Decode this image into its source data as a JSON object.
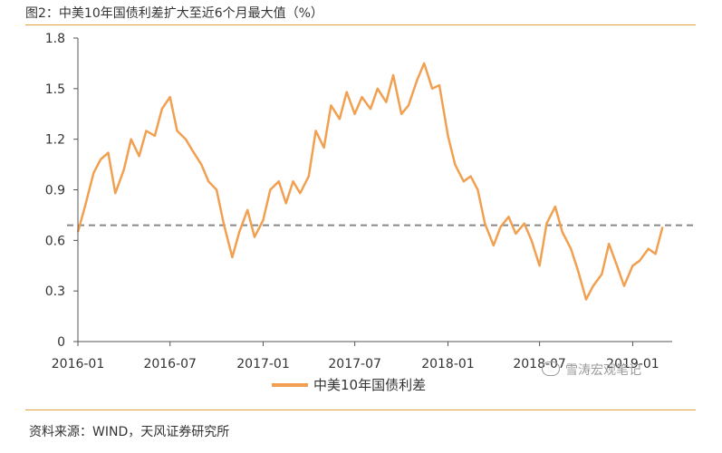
{
  "header": {
    "title": "图2：中美10年国债利差扩大至近6个月最大值（%）"
  },
  "footer": {
    "source": "资料来源：WIND，天风证券研究所"
  },
  "watermark": {
    "text": "雪涛宏观笔记"
  },
  "colors": {
    "series": "#f0a050",
    "reference": "#888888",
    "axis": "#555555",
    "rule": "#e8a040"
  },
  "chart_data": {
    "type": "line",
    "title": "",
    "xlabel": "",
    "ylabel": "",
    "ylim": [
      0,
      1.8
    ],
    "yticks": [
      "0",
      "0.3",
      "0.6",
      "0.9",
      "1.2",
      "1.5",
      "1.8"
    ],
    "xticks": [
      "2016-01",
      "2016-07",
      "2017-01",
      "2017-07",
      "2018-01",
      "2018-07",
      "2019-01"
    ],
    "grid": false,
    "legend_position": "bottom",
    "reference_line": {
      "y": 0.69,
      "style": "dashed"
    },
    "series": [
      {
        "name": "中美10年国债利差",
        "x": [
          "2016-01-01",
          "2016-01-15",
          "2016-02-01",
          "2016-02-15",
          "2016-03-01",
          "2016-03-15",
          "2016-04-01",
          "2016-04-15",
          "2016-05-01",
          "2016-05-15",
          "2016-06-01",
          "2016-06-15",
          "2016-07-01",
          "2016-07-15",
          "2016-08-01",
          "2016-08-15",
          "2016-09-01",
          "2016-09-15",
          "2016-10-01",
          "2016-10-15",
          "2016-11-01",
          "2016-11-15",
          "2016-12-01",
          "2016-12-15",
          "2017-01-01",
          "2017-01-15",
          "2017-02-01",
          "2017-02-15",
          "2017-03-01",
          "2017-03-15",
          "2017-04-01",
          "2017-04-15",
          "2017-05-01",
          "2017-05-15",
          "2017-06-01",
          "2017-06-15",
          "2017-07-01",
          "2017-07-15",
          "2017-08-01",
          "2017-08-15",
          "2017-09-01",
          "2017-09-15",
          "2017-10-01",
          "2017-10-15",
          "2017-11-01",
          "2017-11-15",
          "2017-12-01",
          "2017-12-15",
          "2018-01-01",
          "2018-01-15",
          "2018-02-01",
          "2018-02-15",
          "2018-03-01",
          "2018-03-15",
          "2018-04-01",
          "2018-04-15",
          "2018-05-01",
          "2018-05-15",
          "2018-06-01",
          "2018-06-15",
          "2018-07-01",
          "2018-07-15",
          "2018-08-01",
          "2018-08-15",
          "2018-09-01",
          "2018-09-15",
          "2018-10-01",
          "2018-10-15",
          "2018-11-01",
          "2018-11-15",
          "2018-12-01",
          "2018-12-15",
          "2019-01-01",
          "2019-01-15",
          "2019-02-01",
          "2019-02-15",
          "2019-03-01"
        ],
        "values": [
          0.65,
          0.8,
          1.0,
          1.08,
          1.12,
          0.88,
          1.02,
          1.2,
          1.1,
          1.25,
          1.22,
          1.38,
          1.45,
          1.25,
          1.2,
          1.13,
          1.05,
          0.95,
          0.9,
          0.7,
          0.5,
          0.65,
          0.78,
          0.62,
          0.72,
          0.9,
          0.95,
          0.82,
          0.95,
          0.88,
          0.98,
          1.25,
          1.15,
          1.4,
          1.32,
          1.48,
          1.35,
          1.45,
          1.38,
          1.5,
          1.42,
          1.58,
          1.35,
          1.4,
          1.55,
          1.65,
          1.5,
          1.52,
          1.22,
          1.05,
          0.95,
          0.98,
          0.9,
          0.7,
          0.57,
          0.68,
          0.74,
          0.64,
          0.7,
          0.6,
          0.45,
          0.7,
          0.8,
          0.65,
          0.55,
          0.42,
          0.25,
          0.33,
          0.4,
          0.58,
          0.45,
          0.33,
          0.45,
          0.48,
          0.55,
          0.52,
          0.68
        ]
      }
    ]
  }
}
